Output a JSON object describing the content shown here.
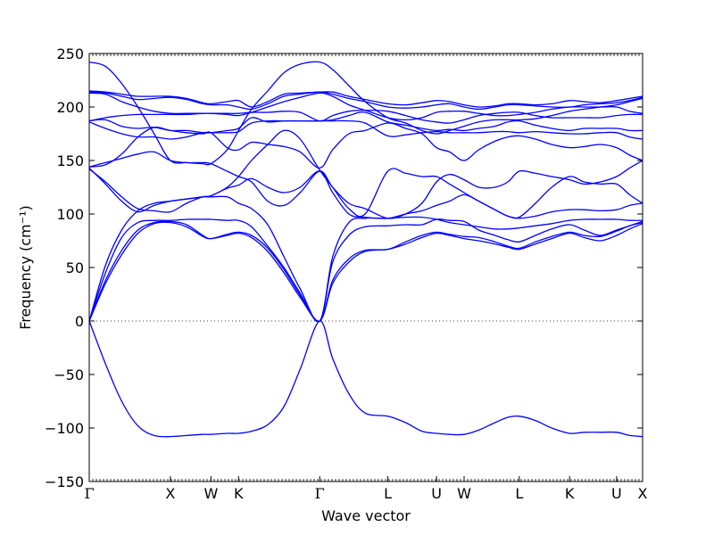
{
  "chart_data": {
    "type": "line",
    "title": "",
    "xlabel": "Wave vector",
    "ylabel": "Frequency (cm⁻¹)",
    "ylim": [
      -150,
      250
    ],
    "yticks": [
      -150,
      -100,
      -50,
      0,
      50,
      100,
      150,
      200,
      250
    ],
    "ytick_labels": [
      "−150",
      "−100",
      "−50",
      "0",
      "50",
      "100",
      "150",
      "200",
      "250"
    ],
    "xlim": [
      0,
      3.41
    ],
    "xticks": [
      0,
      0.5,
      0.75,
      0.92,
      1.42,
      1.84,
      2.14,
      2.31,
      2.65,
      2.96,
      3.25,
      3.41
    ],
    "xtick_labels": [
      "Γ",
      "X",
      "W",
      "K",
      "Γ",
      "L",
      "U",
      "W",
      "L",
      "K",
      "U",
      "X"
    ],
    "zero_line": true,
    "line_color": "#0000ff",
    "series": [
      {
        "x": [
          0,
          0.1,
          0.2,
          0.3,
          0.4,
          0.5,
          0.6,
          0.7,
          0.75,
          0.85,
          0.92,
          1.0,
          1.1,
          1.2,
          1.3,
          1.42,
          1.5,
          1.6,
          1.7,
          1.84,
          1.95,
          2.05,
          2.14,
          2.22,
          2.31,
          2.4,
          2.5,
          2.58,
          2.65,
          2.75,
          2.85,
          2.96,
          3.05,
          3.15,
          3.25,
          3.33,
          3.41
        ],
        "y": [
          0,
          -40,
          -75,
          -98,
          -107,
          -108,
          -107,
          -106,
          -106,
          -105,
          -105,
          -103,
          -97,
          -80,
          -45,
          0,
          -35,
          -68,
          -86,
          -89,
          -95,
          -103,
          -105,
          -106,
          -106,
          -102,
          -95,
          -90,
          -89,
          -93,
          -100,
          -105,
          -104,
          -104,
          -104,
          -107,
          -108
        ]
      },
      {
        "x": [
          0,
          0.1,
          0.2,
          0.3,
          0.4,
          0.5,
          0.6,
          0.7,
          0.75,
          0.85,
          0.92,
          1.0,
          1.1,
          1.2,
          1.3,
          1.42,
          1.5,
          1.6,
          1.7,
          1.84,
          1.95,
          2.05,
          2.14,
          2.22,
          2.31,
          2.4,
          2.5,
          2.58,
          2.65,
          2.75,
          2.85,
          2.96,
          3.05,
          3.15,
          3.25,
          3.33,
          3.41
        ],
        "y": [
          0,
          35,
          62,
          82,
          91,
          92,
          88,
          79,
          77,
          80,
          82,
          78,
          65,
          45,
          22,
          0,
          35,
          55,
          65,
          67,
          72,
          78,
          82,
          80,
          77,
          75,
          72,
          69,
          67,
          72,
          77,
          82,
          78,
          75,
          80,
          86,
          91
        ]
      },
      {
        "x": [
          0,
          0.1,
          0.2,
          0.3,
          0.4,
          0.5,
          0.6,
          0.7,
          0.75,
          0.85,
          0.92,
          1.0,
          1.1,
          1.2,
          1.3,
          1.42,
          1.5,
          1.6,
          1.7,
          1.84,
          1.95,
          2.05,
          2.14,
          2.22,
          2.31,
          2.4,
          2.5,
          2.58,
          2.65,
          2.75,
          2.85,
          2.96,
          3.05,
          3.15,
          3.25,
          3.33,
          3.41
        ],
        "y": [
          0,
          38,
          66,
          85,
          92,
          93,
          90,
          80,
          77,
          81,
          83,
          80,
          68,
          48,
          24,
          0,
          38,
          58,
          66,
          67,
          74,
          80,
          83,
          81,
          79,
          78,
          74,
          70,
          68,
          74,
          79,
          83,
          80,
          79,
          84,
          89,
          92
        ]
      },
      {
        "x": [
          0,
          0.1,
          0.2,
          0.3,
          0.4,
          0.5,
          0.6,
          0.7,
          0.75,
          0.85,
          0.92,
          1.0,
          1.1,
          1.2,
          1.3,
          1.42,
          1.5,
          1.6,
          1.7,
          1.84,
          1.95,
          2.05,
          2.14,
          2.22,
          2.31,
          2.4,
          2.5,
          2.58,
          2.65,
          2.75,
          2.85,
          2.96,
          3.05,
          3.15,
          3.25,
          3.33,
          3.41
        ],
        "y": [
          0,
          45,
          78,
          92,
          94,
          94,
          95,
          95,
          95,
          94,
          94,
          88,
          70,
          50,
          26,
          0,
          55,
          80,
          88,
          89,
          90,
          90,
          95,
          94,
          93,
          85,
          80,
          76,
          74,
          80,
          86,
          90,
          85,
          80,
          85,
          89,
          93
        ]
      },
      {
        "x": [
          0,
          0.1,
          0.2,
          0.3,
          0.4,
          0.5,
          0.6,
          0.7,
          0.75,
          0.85,
          0.92,
          1.0,
          1.1,
          1.2,
          1.3,
          1.42,
          1.5,
          1.6,
          1.7,
          1.84,
          1.95,
          2.05,
          2.14,
          2.22,
          2.31,
          2.4,
          2.5,
          2.58,
          2.65,
          2.75,
          2.85,
          2.96,
          3.05,
          3.15,
          3.25,
          3.33,
          3.41
        ],
        "y": [
          0,
          52,
          85,
          103,
          110,
          112,
          114,
          116,
          116,
          116,
          110,
          105,
          90,
          60,
          30,
          0,
          60,
          92,
          96,
          96,
          97,
          97,
          95,
          92,
          90,
          88,
          86,
          86,
          87,
          89,
          91,
          94,
          95,
          95,
          95,
          94,
          94
        ]
      },
      {
        "x": [
          0,
          0.1,
          0.2,
          0.3,
          0.4,
          0.5,
          0.6,
          0.7,
          0.75,
          0.85,
          0.92,
          1.0,
          1.1,
          1.2,
          1.3,
          1.42,
          1.5,
          1.6,
          1.7,
          1.84,
          1.95,
          2.05,
          2.14,
          2.22,
          2.31,
          2.4,
          2.5,
          2.58,
          2.65,
          2.75,
          2.85,
          2.96,
          3.05,
          3.15,
          3.25,
          3.33,
          3.41
        ],
        "y": [
          142,
          130,
          116,
          105,
          103,
          102,
          110,
          116,
          117,
          124,
          127,
          133,
          125,
          120,
          125,
          140,
          120,
          100,
          97,
          96,
          100,
          103,
          108,
          112,
          118,
          112,
          104,
          98,
          96,
          98,
          102,
          104,
          104,
          103,
          104,
          108,
          110
        ]
      },
      {
        "x": [
          0,
          0.1,
          0.2,
          0.3,
          0.4,
          0.5,
          0.6,
          0.7,
          0.75,
          0.85,
          0.92,
          1.0,
          1.1,
          1.2,
          1.3,
          1.42,
          1.5,
          1.6,
          1.7,
          1.84,
          1.95,
          2.05,
          2.14,
          2.22,
          2.31,
          2.4,
          2.5,
          2.58,
          2.65,
          2.75,
          2.85,
          2.96,
          3.05,
          3.15,
          3.25,
          3.33,
          3.41
        ],
        "y": [
          143,
          128,
          112,
          102,
          108,
          112,
          114,
          116,
          117,
          125,
          135,
          150,
          165,
          178,
          170,
          141,
          125,
          105,
          100,
          140,
          138,
          135,
          135,
          128,
          120,
          112,
          104,
          98,
          97,
          110,
          125,
          135,
          130,
          128,
          128,
          118,
          110
        ]
      },
      {
        "x": [
          0,
          0.1,
          0.2,
          0.3,
          0.4,
          0.5,
          0.6,
          0.7,
          0.75,
          0.85,
          0.92,
          1.0,
          1.1,
          1.2,
          1.3,
          1.42,
          1.5,
          1.6,
          1.7,
          1.84,
          1.95,
          2.05,
          2.14,
          2.22,
          2.31,
          2.4,
          2.5,
          2.58,
          2.65,
          2.75,
          2.85,
          2.96,
          3.05,
          3.15,
          3.25,
          3.33,
          3.41
        ],
        "y": [
          144,
          148,
          152,
          156,
          158,
          150,
          148,
          148,
          147,
          140,
          135,
          130,
          112,
          108,
          120,
          140,
          125,
          110,
          105,
          96,
          100,
          110,
          130,
          137,
          132,
          125,
          125,
          130,
          140,
          138,
          135,
          132,
          128,
          130,
          135,
          143,
          150
        ]
      },
      {
        "x": [
          0,
          0.1,
          0.2,
          0.3,
          0.4,
          0.5,
          0.6,
          0.7,
          0.75,
          0.85,
          0.92,
          1.0,
          1.1,
          1.2,
          1.3,
          1.42,
          1.5,
          1.6,
          1.7,
          1.84,
          1.95,
          2.05,
          2.14,
          2.22,
          2.31,
          2.4,
          2.5,
          2.58,
          2.65,
          2.75,
          2.85,
          2.96,
          3.05,
          3.15,
          3.25,
          3.33,
          3.41
        ],
        "y": [
          144,
          146,
          156,
          172,
          181,
          178,
          176,
          175,
          176,
          162,
          160,
          167,
          165,
          163,
          158,
          143,
          160,
          175,
          178,
          185,
          180,
          175,
          162,
          158,
          150,
          160,
          168,
          172,
          173,
          170,
          165,
          162,
          163,
          165,
          162,
          155,
          150
        ]
      },
      {
        "x": [
          0,
          0.1,
          0.2,
          0.3,
          0.4,
          0.5,
          0.6,
          0.7,
          0.75,
          0.85,
          0.92,
          1.0,
          1.1,
          1.2,
          1.3,
          1.42,
          1.5,
          1.6,
          1.7,
          1.84,
          1.95,
          2.05,
          2.14,
          2.22,
          2.31,
          2.4,
          2.5,
          2.58,
          2.65,
          2.75,
          2.85,
          2.96,
          3.05,
          3.15,
          3.25,
          3.33,
          3.41
        ],
        "y": [
          186,
          180,
          175,
          172,
          172,
          170,
          172,
          176,
          176,
          176,
          177,
          185,
          187,
          187,
          187,
          187,
          187,
          187,
          185,
          173,
          174,
          176,
          177,
          176,
          176,
          176,
          177,
          177,
          176,
          177,
          176,
          175,
          175,
          176,
          176,
          172,
          170
        ]
      },
      {
        "x": [
          0,
          0.1,
          0.2,
          0.3,
          0.4,
          0.5,
          0.6,
          0.7,
          0.75,
          0.85,
          0.92,
          1.0,
          1.1,
          1.2,
          1.3,
          1.42,
          1.5,
          1.6,
          1.7,
          1.84,
          1.95,
          2.05,
          2.14,
          2.22,
          2.31,
          2.4,
          2.5,
          2.58,
          2.65,
          2.75,
          2.85,
          2.96,
          3.05,
          3.15,
          3.25,
          3.33,
          3.41
        ],
        "y": [
          187,
          188,
          182,
          180,
          181,
          178,
          178,
          176,
          176,
          178,
          180,
          190,
          186,
          187,
          187,
          187,
          188,
          192,
          195,
          186,
          183,
          180,
          178,
          179,
          178,
          180,
          182,
          186,
          187,
          183,
          180,
          178,
          180,
          180,
          180,
          178,
          178
        ]
      },
      {
        "x": [
          0,
          0.1,
          0.2,
          0.3,
          0.4,
          0.5,
          0.6,
          0.7,
          0.75,
          0.85,
          0.92,
          1.0,
          1.1,
          1.2,
          1.3,
          1.42,
          1.5,
          1.6,
          1.7,
          1.84,
          1.95,
          2.05,
          2.14,
          2.22,
          2.31,
          2.4,
          2.5,
          2.58,
          2.65,
          2.75,
          2.85,
          2.96,
          3.05,
          3.15,
          3.25,
          3.33,
          3.41
        ],
        "y": [
          187,
          190,
          192,
          193,
          193,
          193,
          193,
          194,
          194,
          194,
          194,
          195,
          195,
          196,
          195,
          187,
          192,
          196,
          197,
          196,
          192,
          188,
          186,
          185,
          188,
          192,
          194,
          195,
          195,
          192,
          190,
          190,
          190,
          190,
          192,
          193,
          193
        ]
      },
      {
        "x": [
          0,
          0.1,
          0.2,
          0.3,
          0.4,
          0.5,
          0.6,
          0.7,
          0.75,
          0.85,
          0.92,
          1.0,
          1.1,
          1.2,
          1.3,
          1.42,
          1.5,
          1.6,
          1.7,
          1.84,
          1.95,
          2.05,
          2.14,
          2.22,
          2.31,
          2.4,
          2.5,
          2.58,
          2.65,
          2.75,
          2.85,
          2.96,
          3.05,
          3.15,
          3.25,
          3.33,
          3.41
        ],
        "y": [
          213,
          212,
          205,
          200,
          196,
          194,
          194,
          194,
          194,
          193,
          192,
          195,
          200,
          205,
          209,
          213,
          210,
          202,
          197,
          190,
          188,
          190,
          195,
          196,
          196,
          194,
          192,
          192,
          193,
          195,
          198,
          200,
          200,
          200,
          200,
          196,
          194
        ]
      },
      {
        "x": [
          0,
          0.1,
          0.2,
          0.3,
          0.4,
          0.5,
          0.6,
          0.7,
          0.75,
          0.85,
          0.92,
          1.0,
          1.1,
          1.2,
          1.3,
          1.42,
          1.5,
          1.6,
          1.7,
          1.84,
          1.95,
          2.05,
          2.14,
          2.22,
          2.31,
          2.4,
          2.5,
          2.58,
          2.65,
          2.75,
          2.85,
          2.96,
          3.05,
          3.15,
          3.25,
          3.33,
          3.41
        ],
        "y": [
          214,
          213,
          210,
          207,
          208,
          209,
          207,
          203,
          202,
          202,
          200,
          198,
          203,
          210,
          212,
          214,
          212,
          208,
          205,
          200,
          199,
          200,
          202,
          203,
          200,
          198,
          200,
          202,
          202,
          201,
          200,
          200,
          202,
          203,
          204,
          206,
          209
        ]
      },
      {
        "x": [
          0,
          0.1,
          0.2,
          0.3,
          0.4,
          0.5,
          0.6,
          0.7,
          0.75,
          0.85,
          0.92,
          1.0,
          1.1,
          1.2,
          1.3,
          1.42,
          1.5,
          1.6,
          1.7,
          1.84,
          1.95,
          2.05,
          2.14,
          2.22,
          2.31,
          2.4,
          2.5,
          2.58,
          2.65,
          2.75,
          2.85,
          2.96,
          3.05,
          3.15,
          3.25,
          3.33,
          3.41
        ],
        "y": [
          215,
          214,
          212,
          210,
          210,
          210,
          208,
          204,
          203,
          205,
          206,
          200,
          205,
          212,
          213,
          214,
          214,
          210,
          207,
          203,
          202,
          204,
          206,
          205,
          202,
          200,
          201,
          203,
          203,
          202,
          203,
          206,
          205,
          204,
          206,
          208,
          210
        ]
      },
      {
        "x": [
          0,
          0.1,
          0.2,
          0.3,
          0.4,
          0.5,
          0.6,
          0.7,
          0.75,
          0.85,
          0.92,
          1.0,
          1.1,
          1.2,
          1.3,
          1.42,
          1.5,
          1.6,
          1.7,
          1.84,
          1.95,
          2.05,
          2.14,
          2.22,
          2.31,
          2.4,
          2.5,
          2.58,
          2.65,
          2.75,
          2.85,
          2.96,
          3.05,
          3.15,
          3.25,
          3.33,
          3.41
        ],
        "y": [
          242,
          238,
          222,
          200,
          175,
          150,
          148,
          147,
          147,
          160,
          178,
          198,
          215,
          232,
          240,
          242,
          235,
          220,
          205,
          190,
          185,
          178,
          175,
          178,
          182,
          186,
          188,
          188,
          188,
          189,
          192,
          196,
          198,
          200,
          202,
          205,
          208
        ]
      }
    ]
  }
}
